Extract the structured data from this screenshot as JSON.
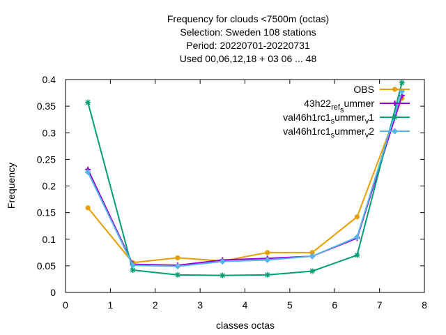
{
  "chart_data": {
    "type": "line",
    "title_lines": [
      "Frequency  for clouds <7500m (octas)",
      "Selection: Sweden    108 stations",
      "Period: 20220701-20220731",
      "Used  00,06,12,18  + 03 06 ... 48"
    ],
    "xlabel": "classes octas",
    "ylabel": "Frequency",
    "xlim": [
      0,
      8
    ],
    "ylim": [
      0,
      0.4
    ],
    "xticks": [
      "0",
      "1",
      "2",
      "3",
      "4",
      "5",
      "6",
      "7",
      "8"
    ],
    "yticks": [
      "0",
      "0.05",
      "0.1",
      "0.15",
      "0.2",
      "0.25",
      "0.3",
      "0.35",
      "0.4"
    ],
    "grid": false,
    "legend_position": "top-right",
    "x": [
      0.5,
      1.5,
      2.5,
      3.5,
      4.5,
      5.5,
      6.5,
      7.5
    ],
    "series": [
      {
        "name": "OBS",
        "legend_parts": [
          {
            "t": "OBS",
            "s": "n"
          }
        ],
        "color": "#e69f00",
        "marker": "circle",
        "values": [
          0.159,
          0.056,
          0.065,
          0.059,
          0.075,
          0.075,
          0.142,
          0.365
        ]
      },
      {
        "name": "43h22_ref_summer",
        "legend_parts": [
          {
            "t": "43h22",
            "s": "n"
          },
          {
            "t": "ref",
            "s": "sub"
          },
          {
            "t": "s",
            "s": "sub2"
          },
          {
            "t": "ummer",
            "s": "n"
          }
        ],
        "color": "#9400d3",
        "marker": "plus",
        "values": [
          0.231,
          0.053,
          0.051,
          0.061,
          0.064,
          0.068,
          0.102,
          0.37
        ]
      },
      {
        "name": "val46h1rc1_summer_v1",
        "legend_parts": [
          {
            "t": "val46h1rc1",
            "s": "n"
          },
          {
            "t": "s",
            "s": "sub"
          },
          {
            "t": "ummer",
            "s": "n"
          },
          {
            "t": "v",
            "s": "sub"
          },
          {
            "t": "1",
            "s": "n"
          }
        ],
        "color": "#009e73",
        "marker": "star",
        "values": [
          0.357,
          0.042,
          0.033,
          0.032,
          0.033,
          0.04,
          0.07,
          0.394
        ]
      },
      {
        "name": "val46h1rc1_summer_v2",
        "legend_parts": [
          {
            "t": "val46h1rc1",
            "s": "n"
          },
          {
            "t": "s",
            "s": "sub"
          },
          {
            "t": "ummer",
            "s": "n"
          },
          {
            "t": "v",
            "s": "sub"
          },
          {
            "t": "2",
            "s": "n"
          }
        ],
        "color": "#56b4e9",
        "marker": "diamond",
        "values": [
          0.226,
          0.051,
          0.049,
          0.058,
          0.061,
          0.068,
          0.104,
          0.378
        ]
      }
    ]
  }
}
